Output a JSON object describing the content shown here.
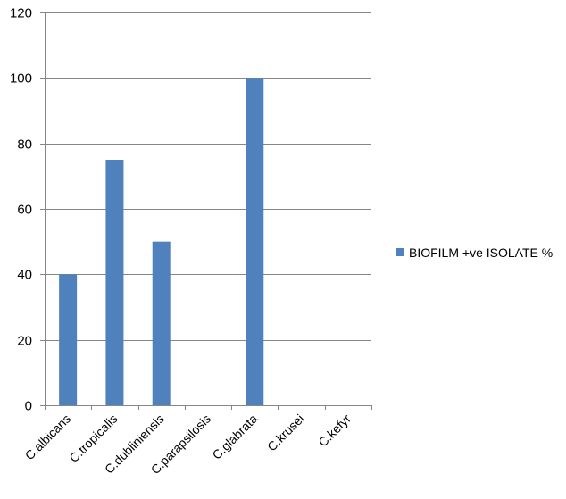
{
  "chart_data": {
    "type": "bar",
    "categories": [
      "C.albicans",
      "C.tropicalis",
      "C.dubliniensis",
      "C.parapsilosis",
      "C.glabrata",
      "C.krusei",
      "C.kefyr"
    ],
    "series": [
      {
        "name": "BIOFILM +ve ISOLATE %",
        "values": [
          40,
          75,
          50,
          0,
          100,
          0,
          0
        ],
        "color": "#4F81BD"
      }
    ],
    "title": "",
    "xlabel": "",
    "ylabel": "",
    "ylim": [
      0,
      120
    ],
    "yticks": [
      0,
      20,
      40,
      60,
      80,
      100,
      120
    ],
    "grid": true,
    "gridColor": "#868686",
    "legend_position": "right"
  }
}
